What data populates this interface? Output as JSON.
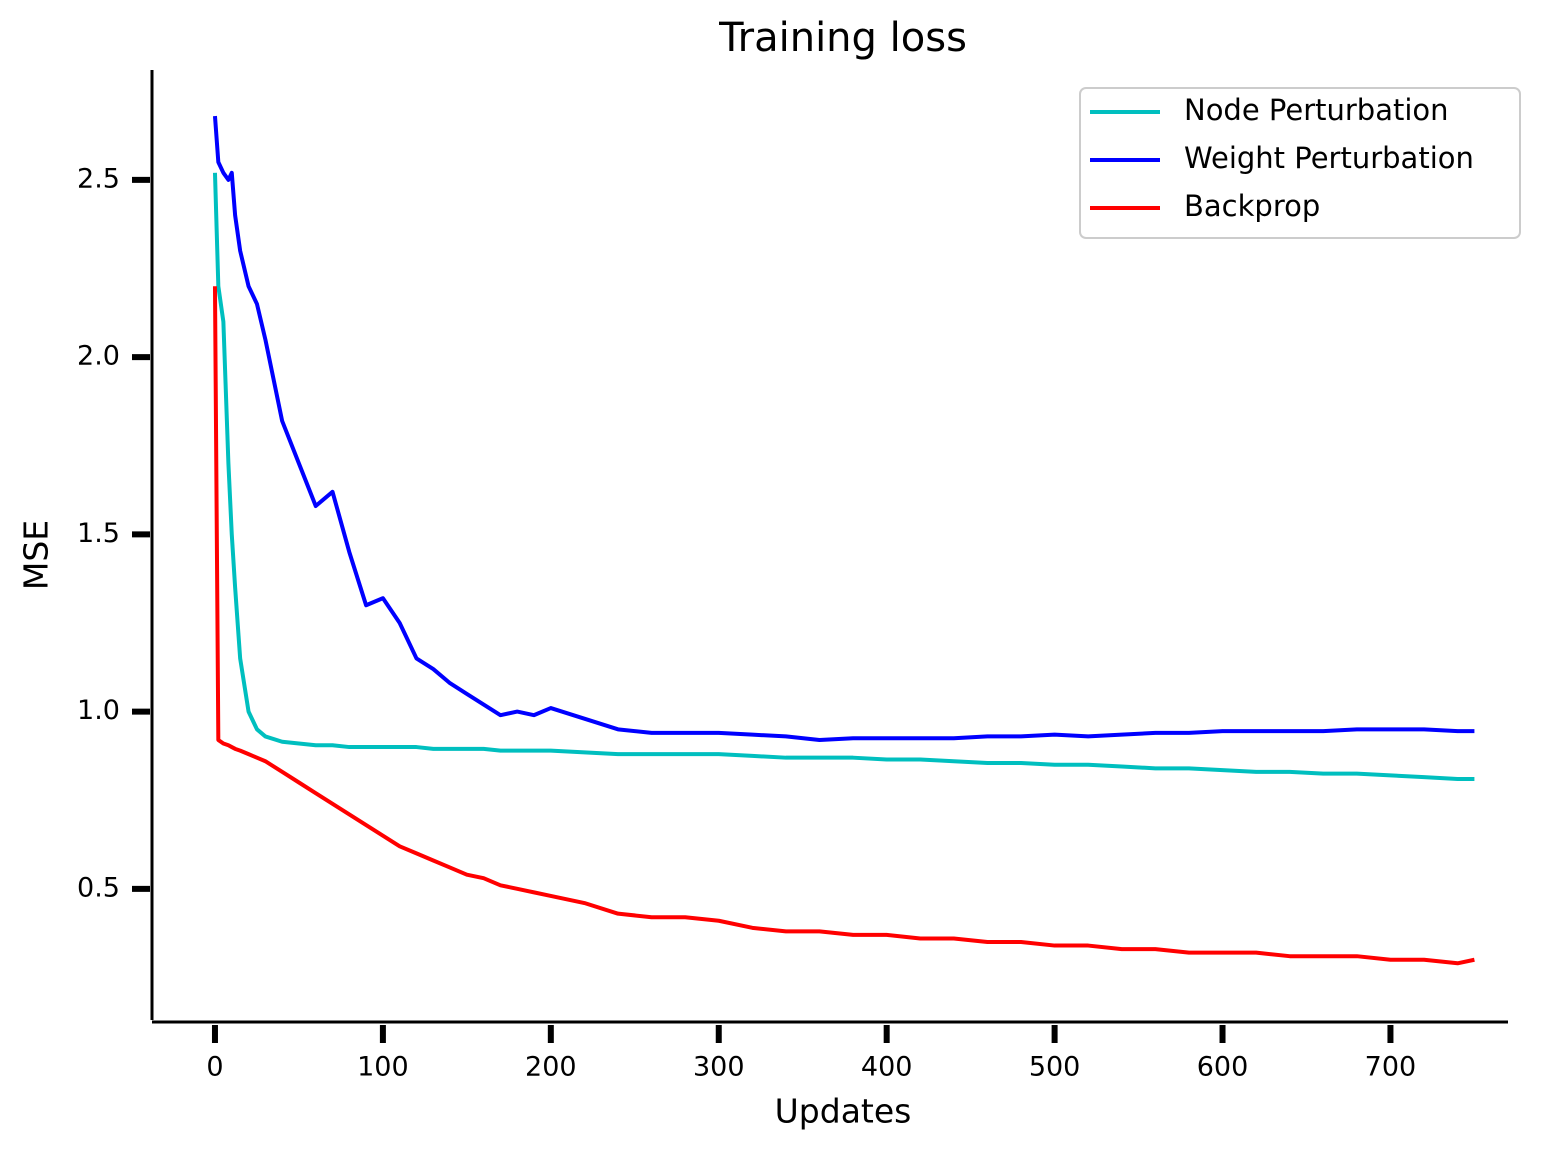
{
  "chart_data": {
    "type": "line",
    "title": "Training loss",
    "x_label": "Updates",
    "y_label": "MSE",
    "x": [
      0,
      2,
      5,
      8,
      10,
      12,
      15,
      20,
      25,
      30,
      40,
      50,
      60,
      70,
      80,
      90,
      100,
      110,
      120,
      130,
      140,
      150,
      160,
      170,
      180,
      190,
      200,
      220,
      240,
      260,
      280,
      300,
      320,
      340,
      360,
      380,
      400,
      420,
      440,
      460,
      480,
      500,
      520,
      540,
      560,
      580,
      600,
      620,
      640,
      660,
      680,
      700,
      720,
      740,
      750
    ],
    "series": [
      {
        "name": "Node Perturbation",
        "color": "#00bfbf",
        "values": [
          2.52,
          2.2,
          2.1,
          1.7,
          1.5,
          1.35,
          1.15,
          1.0,
          0.95,
          0.93,
          0.915,
          0.91,
          0.905,
          0.905,
          0.9,
          0.9,
          0.9,
          0.9,
          0.9,
          0.895,
          0.895,
          0.895,
          0.895,
          0.89,
          0.89,
          0.89,
          0.89,
          0.885,
          0.88,
          0.88,
          0.88,
          0.88,
          0.875,
          0.87,
          0.87,
          0.87,
          0.865,
          0.865,
          0.86,
          0.855,
          0.855,
          0.85,
          0.85,
          0.845,
          0.84,
          0.84,
          0.835,
          0.83,
          0.83,
          0.825,
          0.825,
          0.82,
          0.815,
          0.81,
          0.81
        ]
      },
      {
        "name": "Weight Perturbation",
        "color": "#0000ff",
        "values": [
          2.68,
          2.55,
          2.52,
          2.5,
          2.52,
          2.4,
          2.3,
          2.2,
          2.15,
          2.05,
          1.82,
          1.7,
          1.58,
          1.62,
          1.45,
          1.3,
          1.32,
          1.25,
          1.15,
          1.12,
          1.08,
          1.05,
          1.02,
          0.99,
          1.0,
          0.99,
          1.01,
          0.98,
          0.95,
          0.94,
          0.94,
          0.94,
          0.935,
          0.93,
          0.92,
          0.925,
          0.925,
          0.925,
          0.925,
          0.93,
          0.93,
          0.935,
          0.93,
          0.935,
          0.94,
          0.94,
          0.945,
          0.945,
          0.945,
          0.945,
          0.95,
          0.95,
          0.95,
          0.945,
          0.945
        ]
      },
      {
        "name": "Backprop",
        "color": "#ff0000",
        "values": [
          2.2,
          0.92,
          0.91,
          0.905,
          0.9,
          0.895,
          0.89,
          0.88,
          0.87,
          0.86,
          0.83,
          0.8,
          0.77,
          0.74,
          0.71,
          0.68,
          0.65,
          0.62,
          0.6,
          0.58,
          0.56,
          0.54,
          0.53,
          0.51,
          0.5,
          0.49,
          0.48,
          0.46,
          0.43,
          0.42,
          0.42,
          0.41,
          0.39,
          0.38,
          0.38,
          0.37,
          0.37,
          0.36,
          0.36,
          0.35,
          0.35,
          0.34,
          0.34,
          0.33,
          0.33,
          0.32,
          0.32,
          0.32,
          0.31,
          0.31,
          0.31,
          0.3,
          0.3,
          0.29,
          0.3
        ]
      }
    ],
    "xlim": [
      -37.5,
      770
    ],
    "ylim": [
      0.13,
      2.81
    ],
    "xticks": [
      0,
      100,
      200,
      300,
      400,
      500,
      600,
      700
    ],
    "yticks": [
      0.5,
      {
        "value": 1,
        "label": "1.0"
      },
      1.5,
      {
        "value": 2,
        "label": "2.0"
      },
      2.5
    ],
    "legend": "upper right"
  }
}
